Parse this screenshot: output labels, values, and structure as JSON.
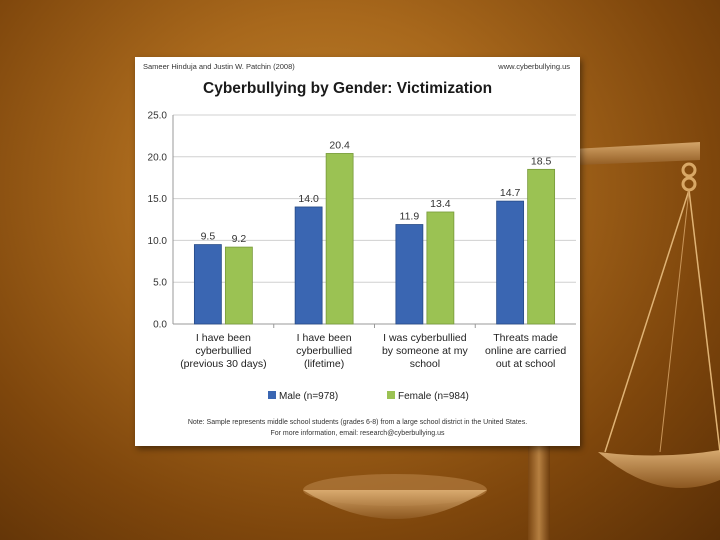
{
  "credits": {
    "left": "Sameer Hinduja and Justin W. Patchin (2008)",
    "right": "www.cyberbullying.us"
  },
  "notes": {
    "line1": "Note: Sample represents middle school students (grades 6-8) from a large school district in the United States.",
    "line2": "For more information, email: research@cyberbullying.us"
  },
  "colors": {
    "male": "#3a66b2",
    "female": "#9bc253",
    "background": "#8a5216"
  },
  "chart_data": {
    "type": "bar",
    "title": "Cyberbullying by Gender: Victimization",
    "xlabel": "",
    "ylabel": "",
    "ylim": [
      0,
      25
    ],
    "yticks": [
      "0.0",
      "5.0",
      "10.0",
      "15.0",
      "20.0",
      "25.0"
    ],
    "grid": true,
    "legend_position": "bottom",
    "categories": [
      [
        "I have been",
        "cyberbullied",
        "(previous 30 days)"
      ],
      [
        "I have been",
        "cyberbullied",
        "(lifetime)"
      ],
      [
        "I was cyberbullied",
        "by someone at my",
        "school"
      ],
      [
        "Threats made",
        "online are carried",
        "out at school"
      ]
    ],
    "series": [
      {
        "name": "Male (n=978)",
        "values": [
          9.5,
          14.0,
          11.9,
          14.7
        ],
        "labels": [
          "9.5",
          "14.0",
          "11.9",
          "14.7"
        ]
      },
      {
        "name": "Female (n=984)",
        "values": [
          9.2,
          20.4,
          13.4,
          18.5
        ],
        "labels": [
          "9.2",
          "20.4",
          "13.4",
          "18.5"
        ]
      }
    ]
  }
}
